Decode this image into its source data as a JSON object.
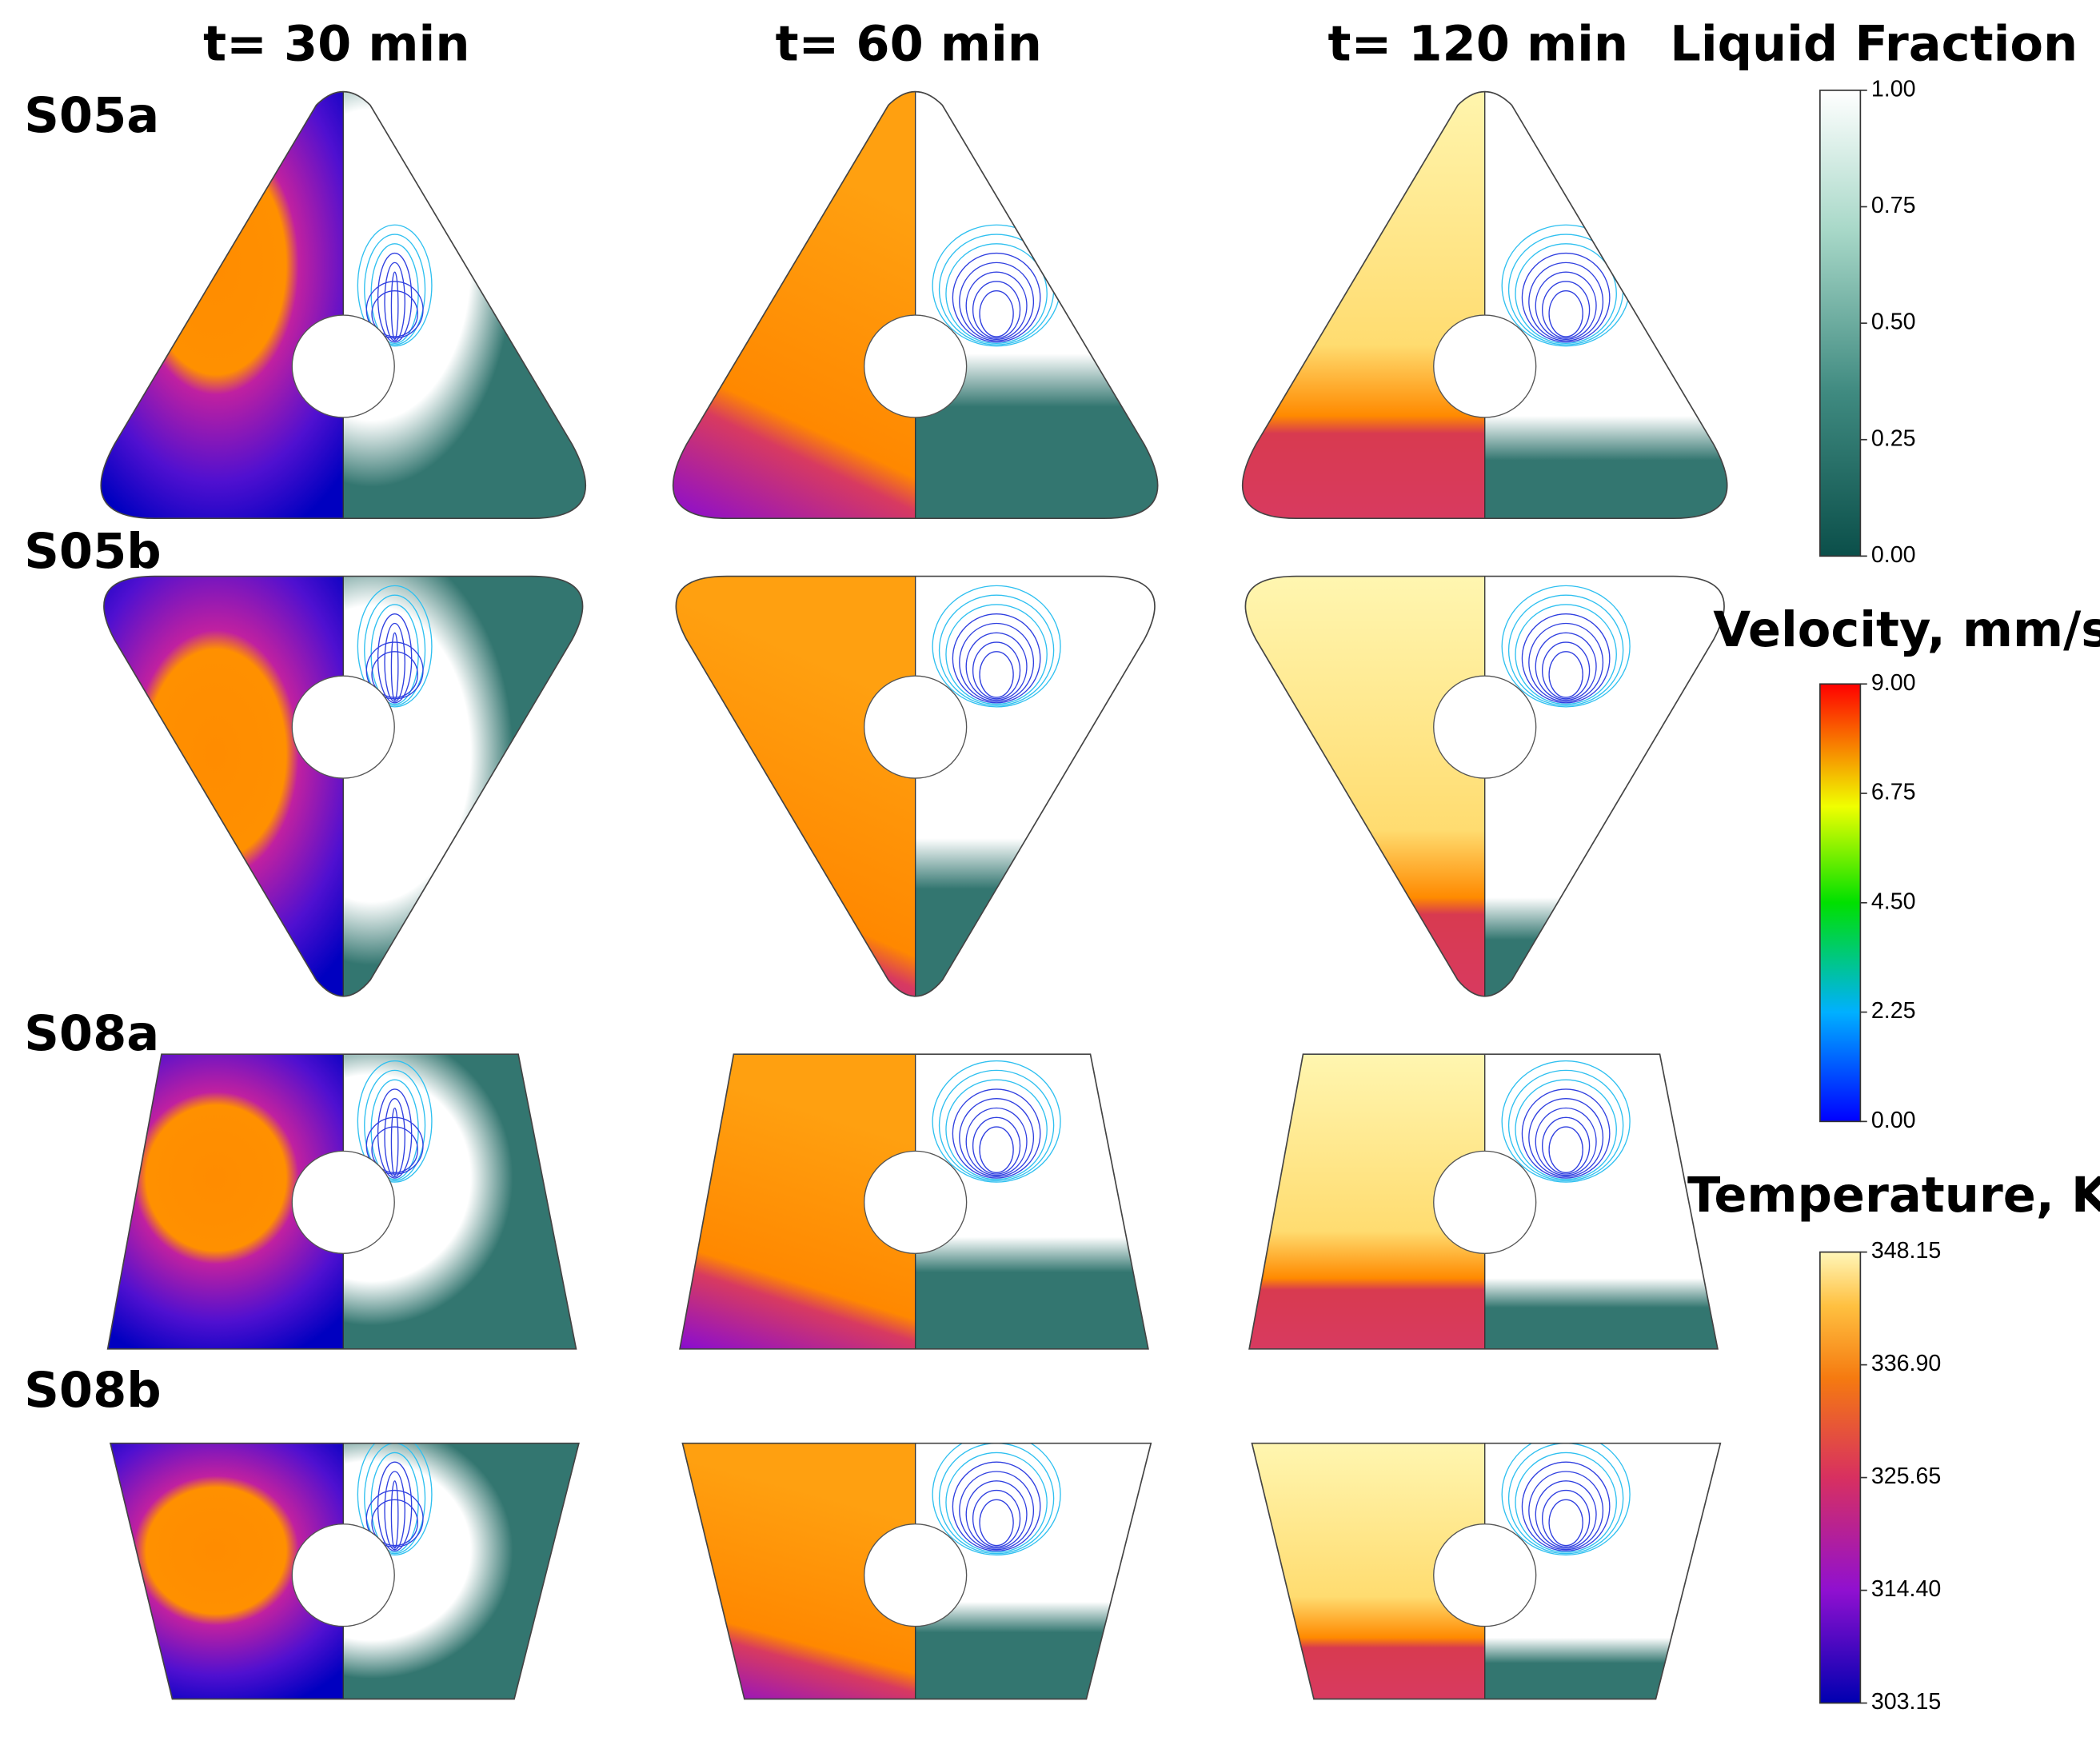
{
  "columns": [
    "t= 30 min",
    "t= 60 min",
    "t= 120 min"
  ],
  "rows": [
    "S05a",
    "S05b",
    "S08a",
    "S08b"
  ],
  "colorbars": [
    {
      "title": "Liquid Fraction",
      "range": [
        0,
        1
      ],
      "ticks": [
        {
          "value": 1,
          "label": "1.00"
        },
        {
          "value": 0.75,
          "label": "0.75"
        },
        {
          "value": 0.5,
          "label": "0.50"
        },
        {
          "value": 0.25,
          "label": "0.25"
        },
        {
          "value": 0,
          "label": "0.00"
        }
      ]
    },
    {
      "title": "Velocity, mm/s",
      "range": [
        0,
        9
      ],
      "ticks": [
        {
          "value": 9,
          "label": "9.00"
        },
        {
          "value": 6.75,
          "label": "6.75"
        },
        {
          "value": 4.5,
          "label": "4.50"
        },
        {
          "value": 2.25,
          "label": "2.25"
        },
        {
          "value": 0,
          "label": "0.00"
        }
      ]
    },
    {
      "title": "Temperature, K",
      "range": [
        303.15,
        348.15
      ],
      "ticks": [
        348.15,
        {
          "value": 336.9,
          "label": "336.90"
        },
        325.65,
        {
          "value": 314.4,
          "label": "314.40"
        },
        303.15
      ]
    }
  ]
}
